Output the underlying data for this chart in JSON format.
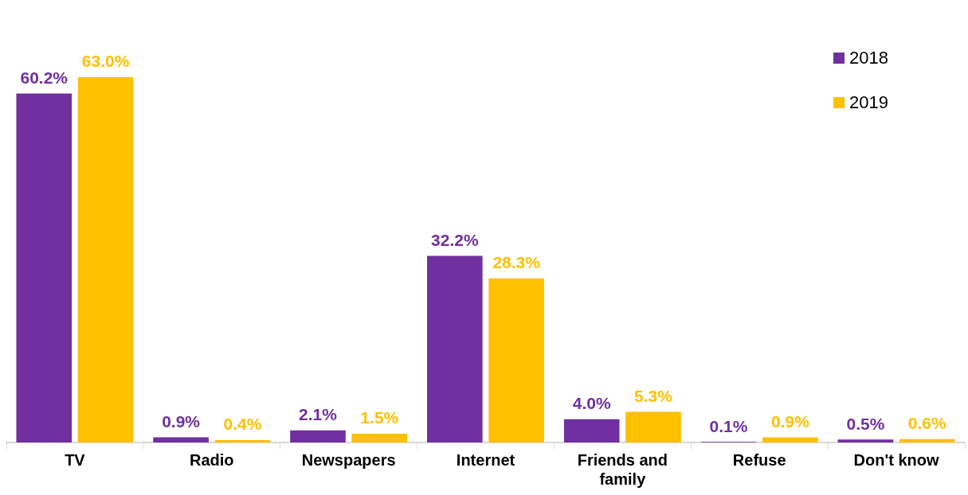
{
  "chart_data": {
    "type": "bar",
    "categories": [
      "TV",
      "Radio",
      "Newspapers",
      "Internet",
      "Friends and family",
      "Refuse",
      "Don't know"
    ],
    "series": [
      {
        "name": "2018",
        "color": "#7030a0",
        "values": [
          60.2,
          0.9,
          2.1,
          32.2,
          4.0,
          0.1,
          0.5
        ],
        "value_labels": [
          "60.2%",
          "0.9%",
          "2.1%",
          "32.2%",
          "4.0%",
          "0.1%",
          "0.5%"
        ]
      },
      {
        "name": "2019",
        "color": "#ffc000",
        "values": [
          63.0,
          0.4,
          1.5,
          28.3,
          5.3,
          0.9,
          0.6
        ],
        "value_labels": [
          "63.0%",
          "0.4%",
          "1.5%",
          "28.3%",
          "5.3%",
          "0.9%",
          "0.6%"
        ]
      }
    ],
    "legend": "top right",
    "tick_labels": "x"
  }
}
